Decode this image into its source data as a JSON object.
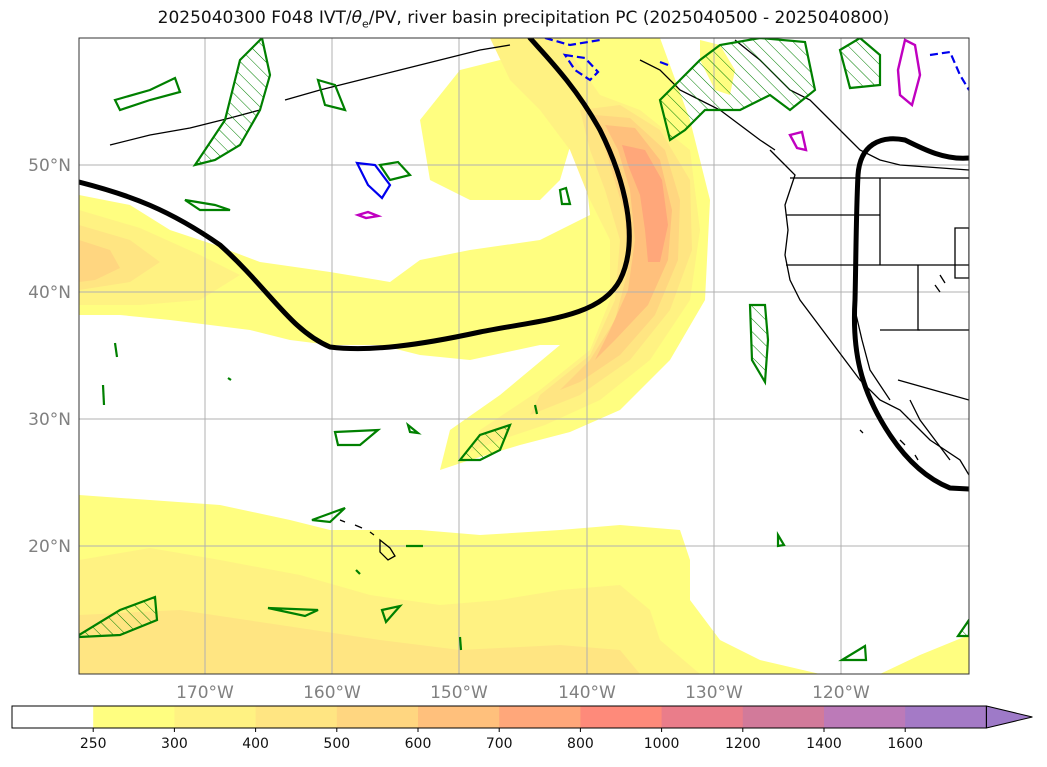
{
  "title": {
    "prefix": "2025040300 F048 IVT/",
    "theta": "θ",
    "theta_sub": "e",
    "suffix": "/PV, river basin precipitation PC (2025040500 - 2025040800)"
  },
  "latitude_labels": [
    "50°N",
    "40°N",
    "30°N",
    "20°N"
  ],
  "longitude_labels": [
    "170°W",
    "160°W",
    "150°W",
    "140°W",
    "130°W",
    "120°W"
  ],
  "colorbar": {
    "ticks": [
      "250",
      "300",
      "400",
      "500",
      "600",
      "700",
      "800",
      "1000",
      "1200",
      "1400",
      "1600"
    ],
    "colors": [
      "#ffffff",
      "#fffe80",
      "#fff282",
      "#ffe582",
      "#ffd680",
      "#ffc07c",
      "#ffa77a",
      "#fe8a7a",
      "#ea7d8a",
      "#d27a9a",
      "#bc7ab8",
      "#a47ac6"
    ],
    "extend": "max"
  },
  "legend_colors": {
    "ivt_contour": "#000000",
    "precip_positive": "#008000",
    "precip_negative": "#0000ee",
    "pv": "#c000c0",
    "coast": "#000000"
  }
}
